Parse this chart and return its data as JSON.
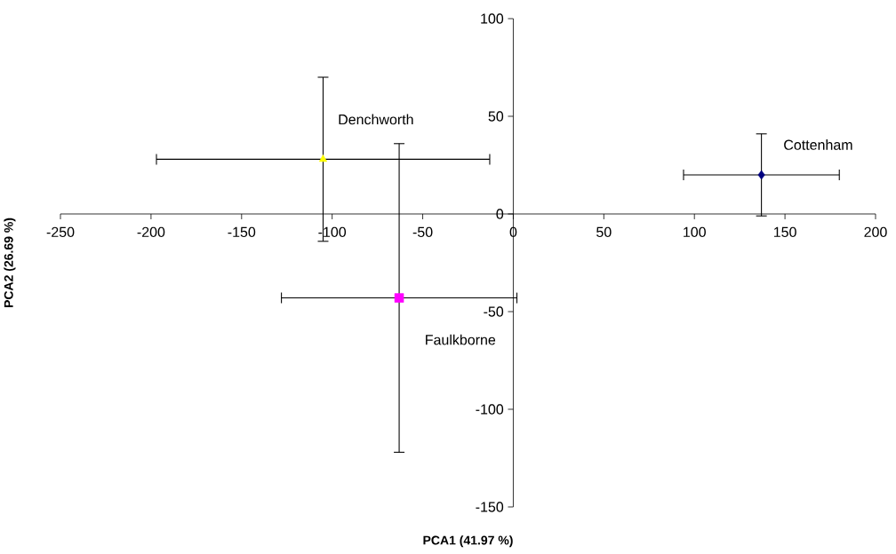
{
  "chart_data": {
    "type": "scatter",
    "xlabel": "PCA1 (41.97 %)",
    "ylabel": "PCA2 (26.69 %)",
    "xlim": [
      -250,
      200
    ],
    "xticks": [
      -250,
      -200,
      -150,
      -100,
      -50,
      0,
      50,
      100,
      150,
      200
    ],
    "ylim": [
      -150,
      100
    ],
    "yticks": [
      -150,
      -100,
      -50,
      0,
      50,
      100
    ],
    "legend": false,
    "series": [
      {
        "name": "Cottenham",
        "color": "#000080",
        "marker": "diamond",
        "x": [
          137
        ],
        "values": [
          20
        ],
        "xerrors": [
          43
        ],
        "errors": [
          21
        ]
      },
      {
        "name": "Faulkborne",
        "color": "#ff00ff",
        "marker": "square",
        "x": [
          -63
        ],
        "values": [
          -43
        ],
        "xerrors": [
          65
        ],
        "errors": [
          79
        ]
      },
      {
        "name": "Denchworth",
        "color": "#ffff00",
        "marker": "triangle",
        "x": [
          -105
        ],
        "values": [
          28
        ],
        "xerrors": [
          92
        ],
        "errors": [
          42
        ]
      }
    ]
  }
}
